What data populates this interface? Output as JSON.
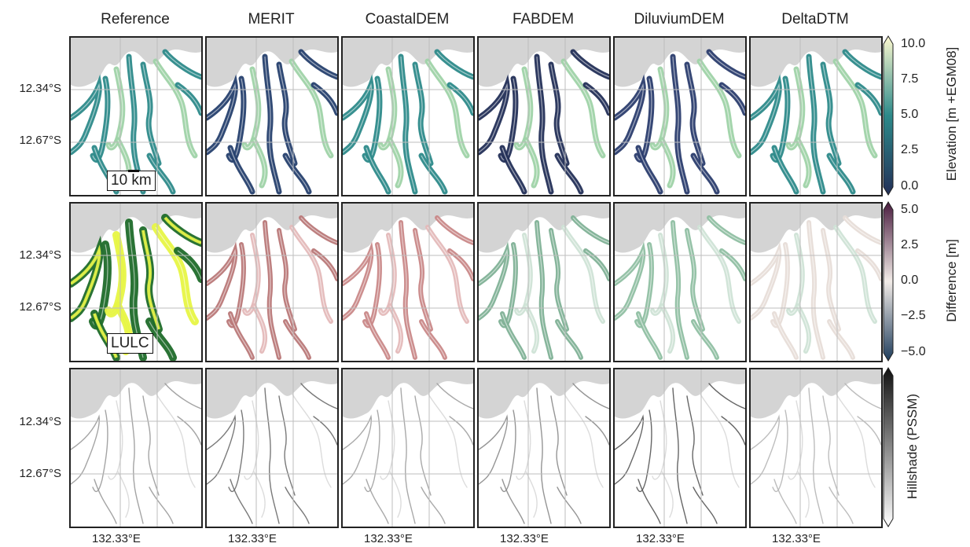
{
  "columns": [
    "Reference",
    "MERIT",
    "CoastalDEM",
    "FABDEM",
    "DiluviumDEM",
    "DeltaDTM"
  ],
  "rows": [
    {
      "id": "elevation",
      "y_ticks": [
        "12.34°S",
        "12.67°S"
      ]
    },
    {
      "id": "difference",
      "y_ticks": [
        "12.34°S",
        "12.67°S"
      ]
    },
    {
      "id": "hillshade",
      "y_ticks": [
        "12.34°S",
        "12.67°S"
      ]
    }
  ],
  "x_tick": "132.33°E",
  "annotations": {
    "scale_bar": "10 km",
    "lulc_label": "LULC"
  },
  "colorbars": {
    "elevation": {
      "label": "Elevation [m +EGM08]",
      "ticks": [
        "10.0",
        "7.5",
        "5.0",
        "2.5",
        "0.0"
      ],
      "range": [
        0,
        10
      ]
    },
    "difference": {
      "label": "Difference [m]",
      "ticks": [
        "5.0",
        "2.5",
        "0.0",
        "−2.5",
        "−5.0"
      ],
      "range": [
        -5,
        5
      ]
    },
    "hillshade": {
      "label": "Hillshade (PSSM)",
      "ticks": []
    }
  },
  "colors": {
    "sea": "#d4d4d4",
    "grid": "#bdbdbd",
    "elev_low": "#232f57",
    "elev_mid": "#2d8a8a",
    "elev_high": "#fdf9d0",
    "diff_neg": "#1f3d5c",
    "diff_zero": "#f2ece8",
    "diff_pos": "#4a1d3f",
    "lulc_veg": "#1f6b2a",
    "lulc_bright": "#e7f545"
  }
}
